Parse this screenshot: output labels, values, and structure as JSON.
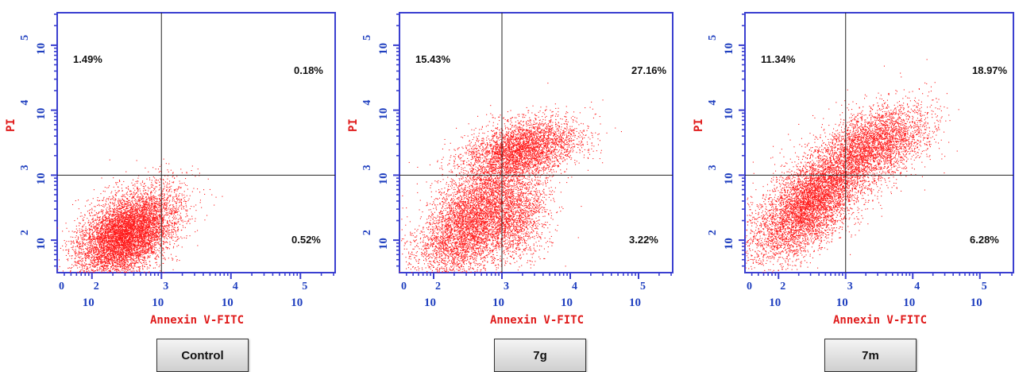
{
  "colors": {
    "frame": "#3a3fd0",
    "tick": "#1f3fbf",
    "dots": "#ff1a1a",
    "axis_title": "#e01b1b"
  },
  "chart_data": [
    {
      "type": "scatter",
      "label": "Control",
      "xlabel": "Annexin V-FITC",
      "ylabel": "PI",
      "x_ticks": [
        {
          "base": "10",
          "exp": "2"
        },
        {
          "base": "10",
          "exp": "3"
        },
        {
          "base": "10",
          "exp": "4"
        },
        {
          "base": "10",
          "exp": "5"
        }
      ],
      "y_ticks": [
        {
          "base": "10",
          "exp": "2"
        },
        {
          "base": "10",
          "exp": "3"
        },
        {
          "base": "10",
          "exp": "4"
        },
        {
          "base": "10",
          "exp": "5"
        }
      ],
      "x_log_range": [
        1.5,
        5.5
      ],
      "y_log_range": [
        1.5,
        5.5
      ],
      "gate": {
        "x": 3.0,
        "y": 3.0
      },
      "quadrants": {
        "upper_left": "1.49%",
        "upper_right": "0.18%",
        "lower_right": "0.52%"
      },
      "populations": [
        {
          "cx": 2.5,
          "cy": 2.1,
          "sx": 0.36,
          "sy": 0.34,
          "rho": 0.45,
          "n": 7200
        }
      ]
    },
    {
      "type": "scatter",
      "label": "7g",
      "xlabel": "Annexin V-FITC",
      "ylabel": "PI",
      "x_ticks": [
        {
          "base": "10",
          "exp": "2"
        },
        {
          "base": "10",
          "exp": "3"
        },
        {
          "base": "10",
          "exp": "4"
        },
        {
          "base": "10",
          "exp": "5"
        }
      ],
      "y_ticks": [
        {
          "base": "10",
          "exp": "2"
        },
        {
          "base": "10",
          "exp": "3"
        },
        {
          "base": "10",
          "exp": "4"
        },
        {
          "base": "10",
          "exp": "5"
        }
      ],
      "x_log_range": [
        1.5,
        5.5
      ],
      "y_log_range": [
        1.5,
        5.5
      ],
      "gate": {
        "x": 3.0,
        "y": 3.0
      },
      "quadrants": {
        "upper_left": "15.43%",
        "upper_right": "27.16%",
        "lower_right": "3.22%"
      },
      "populations": [
        {
          "cx": 2.6,
          "cy": 2.3,
          "sx": 0.42,
          "sy": 0.46,
          "rho": 0.5,
          "n": 5600
        },
        {
          "cx": 3.3,
          "cy": 3.4,
          "sx": 0.42,
          "sy": 0.24,
          "rho": 0.35,
          "n": 3600
        },
        {
          "cx": 3.25,
          "cy": 2.3,
          "sx": 0.22,
          "sy": 0.3,
          "rho": 0.2,
          "n": 900
        }
      ]
    },
    {
      "type": "scatter",
      "label": "7m",
      "xlabel": "Annexin V-FITC",
      "ylabel": "PI",
      "x_ticks": [
        {
          "base": "10",
          "exp": "2"
        },
        {
          "base": "10",
          "exp": "3"
        },
        {
          "base": "10",
          "exp": "4"
        },
        {
          "base": "10",
          "exp": "5"
        }
      ],
      "y_ticks": [
        {
          "base": "10",
          "exp": "2"
        },
        {
          "base": "10",
          "exp": "3"
        },
        {
          "base": "10",
          "exp": "4"
        },
        {
          "base": "10",
          "exp": "5"
        }
      ],
      "x_log_range": [
        1.5,
        5.5
      ],
      "y_log_range": [
        1.5,
        5.5
      ],
      "gate": {
        "x": 3.0,
        "y": 3.0
      },
      "quadrants": {
        "upper_left": "11.34%",
        "upper_right": "18.97%",
        "lower_right": "6.28%"
      },
      "populations": [
        {
          "cx": 2.5,
          "cy": 2.6,
          "sx": 0.45,
          "sy": 0.45,
          "rho": 0.65,
          "n": 6000
        },
        {
          "cx": 3.45,
          "cy": 3.5,
          "sx": 0.4,
          "sy": 0.3,
          "rho": 0.4,
          "n": 3000
        }
      ]
    }
  ]
}
